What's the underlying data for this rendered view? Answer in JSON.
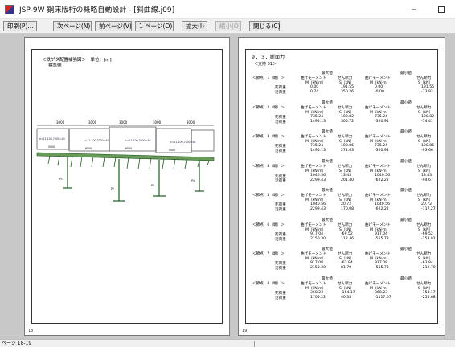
{
  "window": {
    "title": "JSP-9W 鋼床版桁の概略自動設計 - [斜曲線.j09]",
    "min_glyph": "−"
  },
  "toolbar": {
    "buttons": [
      {
        "label": "印刷(P)...",
        "enabled": true
      },
      {
        "label": "次ページ(N)",
        "enabled": true
      },
      {
        "label": "前ページ(V)",
        "enabled": true
      },
      {
        "label": "1 ページ(O)",
        "enabled": true
      },
      {
        "label": "拡大(I)",
        "enabled": true
      },
      {
        "label": "縮小(O)",
        "enabled": false
      },
      {
        "label": "閉じる(C)",
        "enabled": true
      }
    ]
  },
  "left_page": {
    "title": "＜鉄ゲタ配置補強図＞　単位：[m]",
    "subtitle": "標準側",
    "page_number": "18",
    "drawing": {
      "span_labels": [
        "3000",
        "3000",
        "3000",
        "3000",
        "3000"
      ],
      "member_labels": [
        "e=11.100,7000=40",
        "c=11.100,7000=40",
        "c=11.100,7000=40",
        "c=11.100,7000=40"
      ],
      "lower_labels": [
        "5000",
        "6000",
        "6000",
        "5000"
      ],
      "pier_labels": [
        "P1",
        "P2",
        "P3",
        "P4"
      ]
    }
  },
  "right_page": {
    "section_title": "９．３．断面力",
    "case_label": "＜支持 01＞",
    "page_number": "19",
    "header_max": "最大値",
    "header_min": "最小値",
    "col_headers": [
      "＜節点　注)番＞",
      "曲げモーメント",
      "せん断力",
      "曲げモーメント",
      "せん断力"
    ],
    "col_units": [
      "M（kN·m）",
      "S（kN）",
      "M（kN·m）",
      "S（kN）"
    ],
    "row_labels": [
      "死荷重",
      "活荷重"
    ],
    "blocks": [
      {
        "node": "＜節点　1（端）＞",
        "rows": [
          [
            "0.00",
            "191.55",
            "0.00",
            "191.55"
          ],
          [
            "0.74",
            "350.26",
            "-0.00",
            "-73.92"
          ]
        ]
      },
      {
        "node": "＜節点　2（端）＞",
        "rows": [
          [
            "735.24",
            "100.82",
            "735.24",
            "100.82"
          ],
          [
            "1495.13",
            "305.72",
            "-320.94",
            "-74.41"
          ]
        ]
      },
      {
        "node": "＜節点　3（端）＞",
        "rows": [
          [
            "735.24",
            "100.86",
            "735.24",
            "100.86"
          ],
          [
            "1495.13",
            "271.63",
            "-320.94",
            "-93.66"
          ]
        ]
      },
      {
        "node": "＜節点　4（端）＞",
        "rows": [
          [
            "1040.56",
            "13.43",
            "1040.56",
            "13.43"
          ],
          [
            "2299.43",
            "201.40",
            "-622.22",
            "-94.67"
          ]
        ]
      },
      {
        "node": "＜節点　5（端）＞",
        "rows": [
          [
            "1040.56",
            "20.72",
            "1040.56",
            "20.72"
          ],
          [
            "2299.43",
            "170.08",
            "-622.22",
            "-117.27"
          ]
        ]
      },
      {
        "node": "＜節点　6（端）＞",
        "rows": [
          [
            "917.04",
            "-69.52",
            "917.04",
            "-69.52"
          ],
          [
            "2150.30",
            "112.36",
            "-555.73",
            "-153.91"
          ]
        ]
      },
      {
        "node": "＜節点　7（端）＞",
        "rows": [
          [
            "917.08",
            "-63.84",
            "917.08",
            "-63.84"
          ],
          [
            "2150.30",
            "81.79",
            "-555.73",
            "-212.70"
          ]
        ]
      },
      {
        "node": "＜節点　8（端）＞",
        "rows": [
          [
            "368.23",
            "-154.17",
            "368.23",
            "-154.17"
          ],
          [
            "1705.22",
            "40.35",
            "-1117.07",
            "-255.68"
          ]
        ]
      }
    ]
  },
  "status": {
    "text": "ページ 18-19"
  }
}
